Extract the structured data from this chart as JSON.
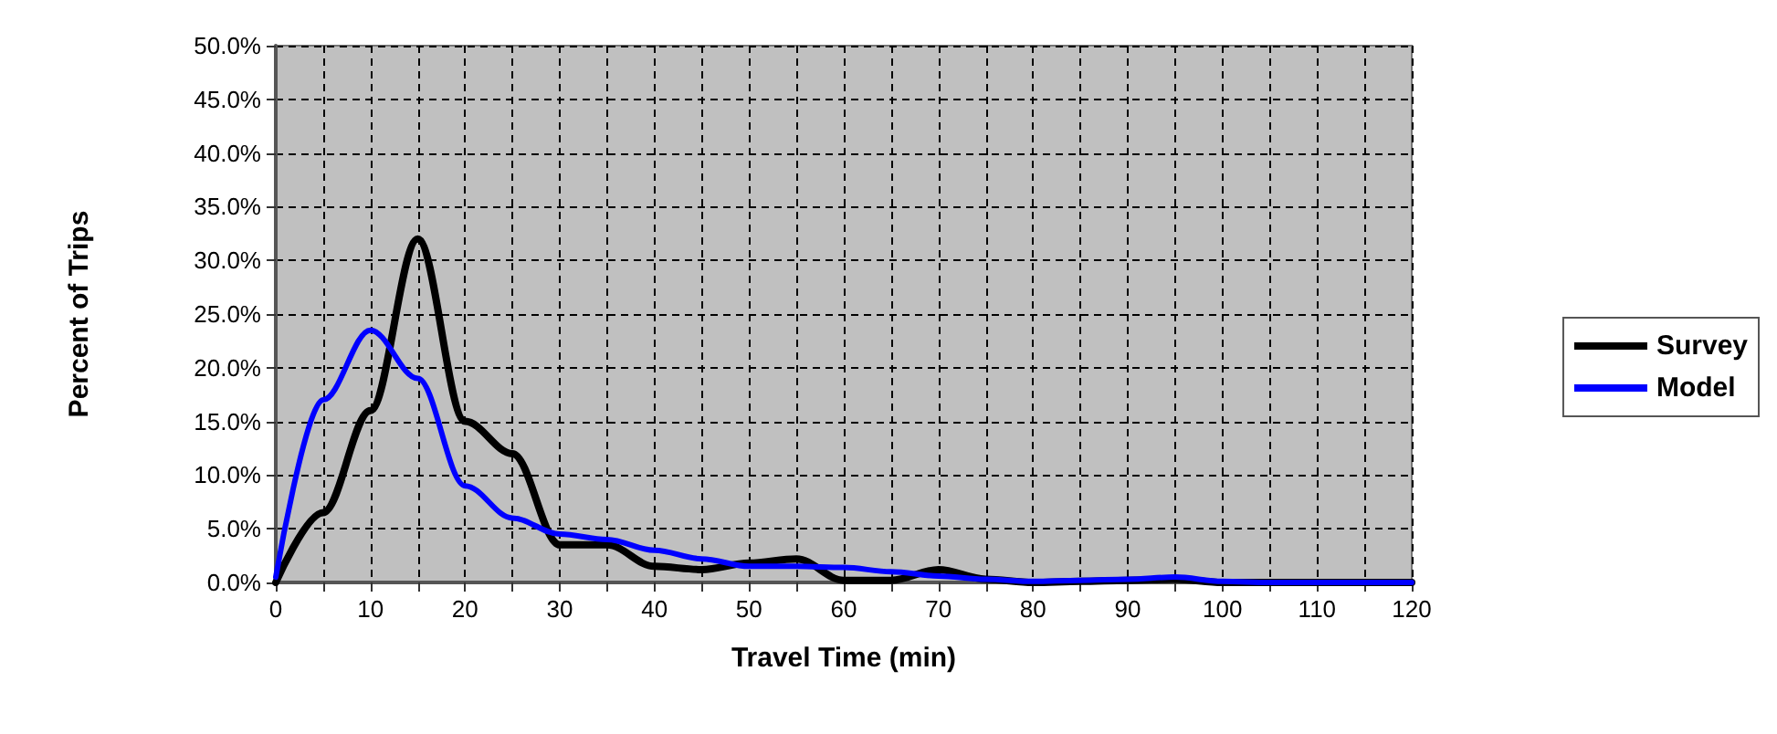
{
  "chart_data": {
    "type": "line",
    "xlabel": "Travel Time (min)",
    "ylabel": "Percent of Trips",
    "x": [
      0,
      5,
      10,
      15,
      20,
      25,
      30,
      35,
      40,
      45,
      50,
      55,
      60,
      65,
      70,
      75,
      80,
      85,
      90,
      95,
      100,
      105,
      110,
      115,
      120
    ],
    "series": [
      {
        "name": "Survey",
        "color": "#000000",
        "values": [
          0,
          6.5,
          16,
          32,
          15,
          12,
          3.5,
          3.5,
          1.5,
          1.2,
          1.8,
          2.2,
          0.2,
          0.2,
          1.2,
          0.3,
          0,
          0.1,
          0.2,
          0.3,
          0,
          0,
          0,
          0,
          0
        ]
      },
      {
        "name": "Model",
        "color": "#0000ff",
        "values": [
          0.5,
          17,
          23.5,
          19,
          9,
          6,
          4.5,
          4,
          3,
          2.2,
          1.5,
          1.5,
          1.4,
          1,
          0.6,
          0.3,
          0.1,
          0.2,
          0.3,
          0.5,
          0.1,
          0,
          0,
          0,
          0
        ]
      }
    ],
    "xlim": [
      0,
      120
    ],
    "xticks": [
      0,
      {
        "value": 5,
        "label": null
      },
      10,
      {
        "value": 15,
        "label": null
      },
      20,
      {
        "value": 25,
        "label": null
      },
      30,
      {
        "value": 35,
        "label": null
      },
      40,
      {
        "value": 45,
        "label": null
      },
      50,
      {
        "value": 55,
        "label": null
      },
      60,
      {
        "value": 65,
        "label": null
      },
      70,
      {
        "value": 75,
        "label": null
      },
      80,
      {
        "value": 85,
        "label": null
      },
      90,
      {
        "value": 95,
        "label": null
      },
      100,
      {
        "value": 105,
        "label": null
      },
      110,
      {
        "value": 115,
        "label": null
      },
      120
    ],
    "ylim": [
      0,
      50
    ],
    "yticks": [
      {
        "value": 0,
        "label": "0.0%"
      },
      {
        "value": 5,
        "label": "5.0%"
      },
      {
        "value": 10,
        "label": "10.0%"
      },
      {
        "value": 15,
        "label": "15.0%"
      },
      {
        "value": 20,
        "label": "20.0%"
      },
      {
        "value": 25,
        "label": "25.0%"
      },
      {
        "value": 30,
        "label": "30.0%"
      },
      {
        "value": 35,
        "label": "35.0%"
      },
      {
        "value": 40,
        "label": "40.0%"
      },
      {
        "value": 45,
        "label": "45.0%"
      },
      {
        "value": 50,
        "label": "50.0%"
      }
    ],
    "grid": true,
    "legend": "right",
    "marker": "none",
    "line_style": "solid"
  }
}
